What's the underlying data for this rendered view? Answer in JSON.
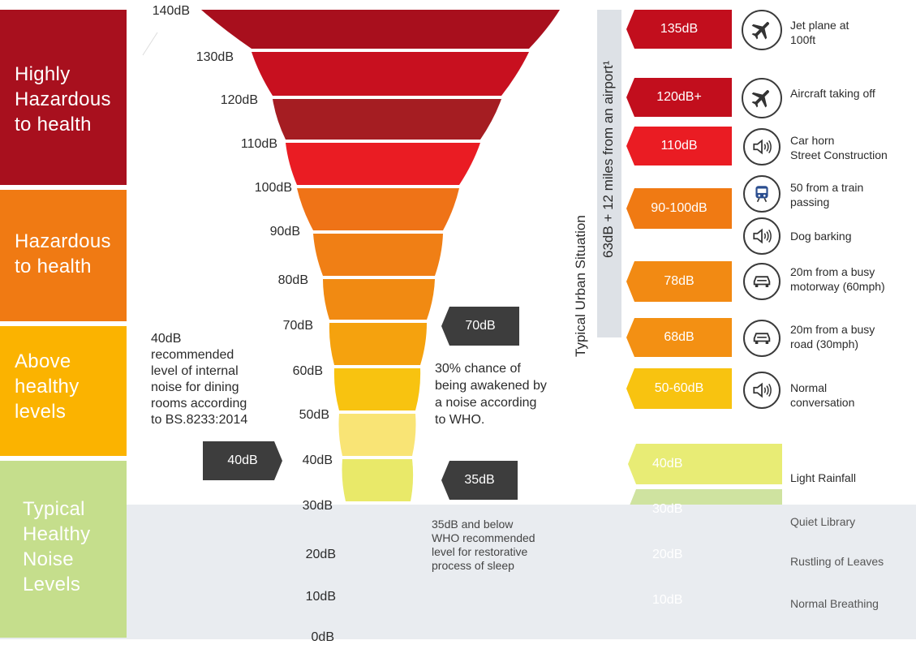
{
  "categories": [
    {
      "label": "Highly\nHazardous\nto health",
      "color": "#a8101e"
    },
    {
      "label": "Hazardous\nto health",
      "color": "#f07a13"
    },
    {
      "label": "Above\nhealthy\nlevels",
      "color": "#fbb300"
    },
    {
      "label": "Typical\nHealthy\nNoise\nLevels",
      "color": "#c5de8c"
    }
  ],
  "db_levels": [
    "140dB",
    "130dB",
    "120dB",
    "110dB",
    "100dB",
    "90dB",
    "80dB",
    "70dB",
    "60dB",
    "50dB",
    "40dB",
    "30dB",
    "20dB",
    "10dB",
    "0dB"
  ],
  "funnel_colors": [
    "#a80f1d",
    "#c8101f",
    "#a51d22",
    "#ea1c23",
    "#ef7317",
    "#f07f15",
    "#f18a12",
    "#f5a20e",
    "#f8c310",
    "#f9e475",
    "#e9e969",
    "#cfe0a0",
    "#b8d46a",
    "#8ccc6c"
  ],
  "left_note": "40dB\nrecommended\nlevel of internal\nnoise for dining\nrooms according\nto BS.8233:2014",
  "left_tag": "40dB",
  "mid_tag_70": "70dB",
  "mid_note_70": "30% chance of\nbeing awakened by\na noise according\nto WHO.",
  "mid_tag_35": "35dB",
  "mid_note_35": "35dB and below\nWHO recommended\nlevel for restorative\nprocess of sleep",
  "vertical_urban": "Typical Urban Situation",
  "vertical_airport": "63dB + 12 miles from an airport¹",
  "examples": [
    {
      "level": "135dB",
      "color": "#c20e1d",
      "icon": "plane-icon",
      "text": "Jet plane at\n100ft"
    },
    {
      "level": "120dB+",
      "color": "#c20e1d",
      "icon": "plane-icon",
      "text": "Aircraft taking off"
    },
    {
      "level": "110dB",
      "color": "#ea1c23",
      "icon": "speaker-icon",
      "text": "Car horn\nStreet Construction"
    },
    {
      "level": "90-100dB",
      "color": "#f07a13",
      "icon": "train-icon",
      "text": "50 from a train\npassing"
    },
    {
      "level": "",
      "color": "",
      "icon": "speaker-icon",
      "text": "Dog barking"
    },
    {
      "level": "78dB",
      "color": "#f28a13",
      "icon": "car-icon",
      "text": "20m from a busy\nmotorway (60mph)"
    },
    {
      "level": "68dB",
      "color": "#f39013",
      "icon": "car-icon",
      "text": "20m from a busy\nroad (30mph)"
    },
    {
      "level": "50-60dB",
      "color": "#f8c310",
      "icon": "speaker-icon",
      "text": "Normal\nconversation"
    },
    {
      "level": "40dB",
      "color": "#e8ec75",
      "icon": "",
      "text": "Light Rainfall"
    },
    {
      "level": "30dB",
      "color": "#cfe3a0",
      "icon": "",
      "text": "Quiet Library"
    },
    {
      "level": "20dB",
      "color": "#a8d020",
      "icon": "",
      "text": "Rustling of Leaves"
    },
    {
      "level": "10dB",
      "color": "#5dbf4a",
      "icon": "",
      "text": "Normal Breathing"
    }
  ]
}
